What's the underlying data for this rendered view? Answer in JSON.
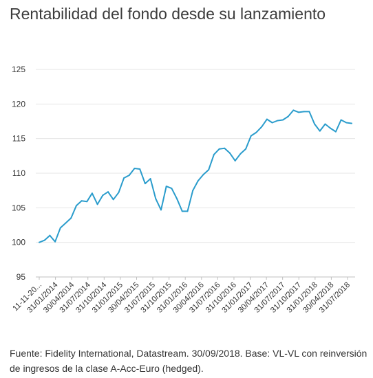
{
  "title": "Rentabilidad del fondo desde su lanzamiento",
  "footer": "Fuente: Fidelity International, Datastream. 30/09/2018. Base: VL-VL con reinversión de ingresos de la clase A-Acc-Euro (hedged).",
  "chart_data": {
    "type": "line",
    "title": "Rentabilidad del fondo desde su lanzamiento",
    "xlabel": "",
    "ylabel": "",
    "ylim": [
      95,
      125
    ],
    "yticks": [
      95,
      100,
      105,
      110,
      115,
      120,
      125
    ],
    "xticks": [
      "11-11-20...",
      "31/01/2014",
      "30/04/2014",
      "31/07/2014",
      "31/10/2014",
      "31/01/2015",
      "30/04/2015",
      "31/07/2015",
      "31/10/2015",
      "31/01/2016",
      "30/04/2016",
      "31/07/2016",
      "31/10/2016",
      "31/01/2017",
      "30/04/2017",
      "31/07/2017",
      "31/10/2017",
      "31/01/2018",
      "30/04/2018",
      "31/07/2018"
    ],
    "grid": true,
    "color": "#2a9ccc",
    "values": [
      100.0,
      100.3,
      101.0,
      100.1,
      102.1,
      102.8,
      103.5,
      105.3,
      106.0,
      105.9,
      107.1,
      105.5,
      106.8,
      107.3,
      106.2,
      107.2,
      109.3,
      109.7,
      110.7,
      110.6,
      108.5,
      109.2,
      106.3,
      104.7,
      108.1,
      107.8,
      106.3,
      104.5,
      104.5,
      107.5,
      108.9,
      109.8,
      110.5,
      112.7,
      113.5,
      113.6,
      112.9,
      111.8,
      112.8,
      113.5,
      115.4,
      115.9,
      116.7,
      117.8,
      117.3,
      117.6,
      117.7,
      118.2,
      119.1,
      118.8,
      118.9,
      118.9,
      117.1,
      116.1,
      117.1,
      116.5,
      116.0,
      117.7,
      117.3,
      117.2
    ]
  }
}
